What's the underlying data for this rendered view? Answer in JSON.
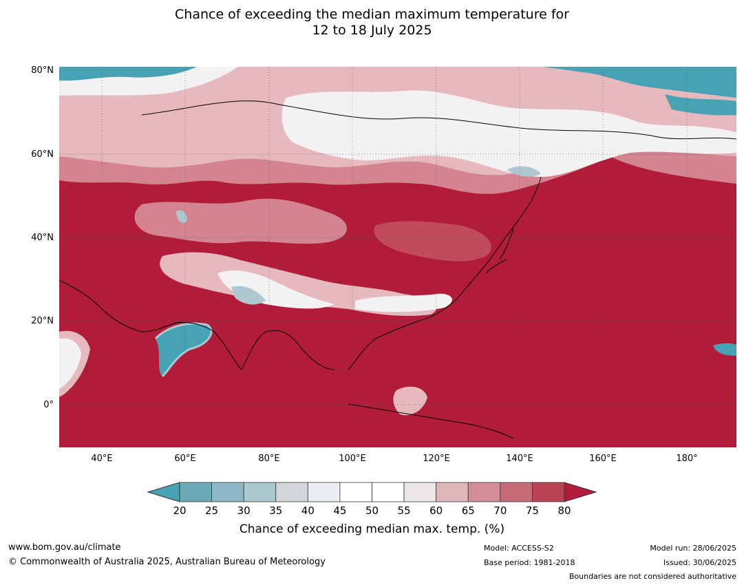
{
  "title": {
    "line1": "Chance of exceeding the median maximum temperature for",
    "line2": "12 to 18 July 2025"
  },
  "lat_labels": [
    "80°N",
    "60°N",
    "40°N",
    "20°N",
    "0°"
  ],
  "lon_labels": [
    "40°E",
    "60°E",
    "80°E",
    "100°E",
    "120°E",
    "140°E",
    "160°E",
    "180°"
  ],
  "colorbar": {
    "ticks": [
      "20",
      "25",
      "30",
      "35",
      "40",
      "45",
      "50",
      "55",
      "60",
      "65",
      "70",
      "75",
      "80"
    ],
    "label": "Chance of exceeding median max. temp. (%)",
    "colors": {
      "below": "#47a3b4",
      "bins": [
        "#6aa9b6",
        "#8db8c5",
        "#adc8ce",
        "#d2d8da",
        "#e9eff0",
        "#ffffff",
        "#ffffff",
        "#ece8e9",
        "#dfb5bb",
        "#d58e98",
        "#c86b78",
        "#ba4453"
      ],
      "above": "#b01c39"
    }
  },
  "footer": {
    "website": "www.bom.gov.au/climate",
    "copyright": "© Commonwealth of Australia 2025, Australian Bureau of Meteorology",
    "model": "Model: ACCESS-S2",
    "base_period": "Base period: 1981-2018",
    "model_run": "Model run: 28/06/2025",
    "issued": "Issued: 30/06/2025",
    "boundaries_note": "Boundaries are not considered authoritative"
  },
  "map_colors": {
    "ocean_hot": "#b01c39",
    "high": "#c24b5b",
    "mid": "#d3848f",
    "light": "#e6b9bf",
    "white": "#f4f1f2",
    "cool": "#adc8ce",
    "cold": "#47a3b4"
  }
}
